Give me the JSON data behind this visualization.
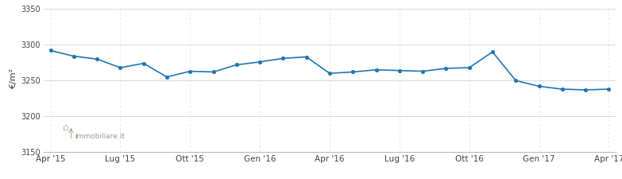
{
  "x_labels": [
    "Apr '15",
    "Lug '15",
    "Ott '15",
    "Gen '16",
    "Apr '16",
    "Lug '16",
    "Ott '16",
    "Gen '17",
    "Apr '17"
  ],
  "x_ticks_pos": [
    0,
    3,
    6,
    9,
    12,
    15,
    18,
    21,
    24
  ],
  "ylim": [
    3150,
    3355
  ],
  "yticks": [
    3150,
    3200,
    3250,
    3300,
    3350
  ],
  "line_color": "#1f77b4",
  "marker_color": "#1f77b4",
  "bg_color": "#ffffff",
  "grid_color_h": "#cccccc",
  "grid_color_v": "#dddddd",
  "ylabel": "€/m²",
  "watermark_color_i": "#e8501a",
  "watermark_color_text": "#999999",
  "n_points": 25,
  "y_data": [
    3292,
    3284,
    3280,
    3268,
    3274,
    3255,
    3263,
    3262,
    3272,
    3276,
    3281,
    3283,
    3260,
    3262,
    3265,
    3264,
    3263,
    3267,
    3268,
    3290,
    3250,
    3242,
    3238,
    3237,
    3238
  ]
}
